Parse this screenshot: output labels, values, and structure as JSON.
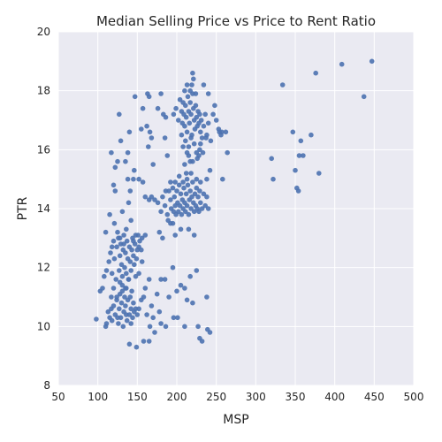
{
  "chart_data": {
    "type": "scatter",
    "title": "Median Selling Price vs Price to Rent Ratio",
    "xlabel": "MSP",
    "ylabel": "PTR",
    "xlim": [
      50,
      500
    ],
    "ylim": [
      8,
      20
    ],
    "xticks": [
      "50",
      "100",
      "150",
      "200",
      "250",
      "300",
      "350",
      "400",
      "450",
      "500"
    ],
    "yticks": [
      "8",
      "10",
      "12",
      "14",
      "16",
      "18",
      "20"
    ],
    "grid": true,
    "colors": {
      "background": "#eaeaf2",
      "grid": "#ffffff",
      "point": "#4c72b0"
    },
    "points": [
      [
        98,
        10.25
      ],
      [
        110,
        10.0
      ],
      [
        111,
        10.1
      ],
      [
        113,
        10.5
      ],
      [
        115,
        10.3
      ],
      [
        117,
        10.6
      ],
      [
        118,
        10.2
      ],
      [
        120,
        10.7
      ],
      [
        122,
        10.4
      ],
      [
        124,
        10.9
      ],
      [
        126,
        10.1
      ],
      [
        127,
        10.6
      ],
      [
        128,
        11.1
      ],
      [
        129,
        10.3
      ],
      [
        130,
        10.8
      ],
      [
        131,
        11.4
      ],
      [
        132,
        10.0
      ],
      [
        133,
        10.5
      ],
      [
        134,
        11.0
      ],
      [
        135,
        10.7
      ],
      [
        136,
        11.3
      ],
      [
        137,
        10.2
      ],
      [
        138,
        10.9
      ],
      [
        139,
        11.6
      ],
      [
        140,
        10.4
      ],
      [
        141,
        11.0
      ],
      [
        142,
        10.6
      ],
      [
        143,
        11.2
      ],
      [
        144,
        10.3
      ],
      [
        145,
        10.8
      ],
      [
        146,
        10.5
      ],
      [
        148,
        10.6
      ],
      [
        150,
        10.4
      ],
      [
        152,
        10.6
      ],
      [
        149,
        9.3
      ],
      [
        140,
        9.4
      ],
      [
        158,
        9.5
      ],
      [
        165,
        9.5
      ],
      [
        166,
        10.0
      ],
      [
        172,
        9.8
      ],
      [
        180,
        10.1
      ],
      [
        186,
        10.0
      ],
      [
        196,
        10.3
      ],
      [
        201,
        10.3
      ],
      [
        210,
        10.0
      ],
      [
        227,
        10.0
      ],
      [
        229,
        9.6
      ],
      [
        232,
        9.5
      ],
      [
        239,
        9.9
      ],
      [
        242,
        9.8
      ],
      [
        238,
        11.0
      ],
      [
        225,
        11.9
      ],
      [
        217,
        11.7
      ],
      [
        205,
        11.4
      ],
      [
        210,
        11.3
      ],
      [
        213,
        10.9
      ],
      [
        220,
        10.8
      ],
      [
        195,
        12.0
      ],
      [
        180,
        11.6
      ],
      [
        185,
        11.6
      ],
      [
        175,
        11.1
      ],
      [
        168,
        10.7
      ],
      [
        162,
        10.4
      ],
      [
        170,
        10.3
      ],
      [
        178,
        10.5
      ],
      [
        160,
        11.3
      ],
      [
        155,
        10.9
      ],
      [
        158,
        11.0
      ],
      [
        165,
        11.6
      ],
      [
        190,
        11.0
      ],
      [
        200,
        11.2
      ],
      [
        103,
        11.2
      ],
      [
        106,
        11.3
      ],
      [
        108,
        11.7
      ],
      [
        111,
        11.9
      ],
      [
        114,
        12.2
      ],
      [
        116,
        12.5
      ],
      [
        118,
        11.8
      ],
      [
        120,
        12.9
      ],
      [
        121,
        12.3
      ],
      [
        123,
        11.6
      ],
      [
        124,
        12.7
      ],
      [
        126,
        13.0
      ],
      [
        127,
        11.9
      ],
      [
        128,
        12.4
      ],
      [
        129,
        12.8
      ],
      [
        130,
        12.1
      ],
      [
        131,
        11.7
      ],
      [
        132,
        12.6
      ],
      [
        133,
        13.1
      ],
      [
        134,
        12.0
      ],
      [
        135,
        12.5
      ],
      [
        136,
        11.8
      ],
      [
        137,
        12.9
      ],
      [
        138,
        12.3
      ],
      [
        139,
        11.6
      ],
      [
        140,
        12.7
      ],
      [
        141,
        12.2
      ],
      [
        142,
        11.9
      ],
      [
        143,
        12.6
      ],
      [
        144,
        13.0
      ],
      [
        145,
        12.4
      ],
      [
        146,
        12.1
      ],
      [
        147,
        12.8
      ],
      [
        148,
        11.7
      ],
      [
        149,
        12.3
      ],
      [
        150,
        12.6
      ],
      [
        151,
        13.1
      ],
      [
        153,
        12.9
      ],
      [
        155,
        12.6
      ],
      [
        156,
        12.2
      ],
      [
        152,
        11.8
      ],
      [
        135,
        11.3
      ],
      [
        131,
        11.2
      ],
      [
        128,
        11.5
      ],
      [
        124,
        11.0
      ],
      [
        120,
        11.3
      ],
      [
        117,
        11.0
      ],
      [
        125,
        10.3
      ],
      [
        136,
        10.4
      ],
      [
        142,
        10.1
      ],
      [
        110,
        13.2
      ],
      [
        115,
        13.8
      ],
      [
        118,
        12.7
      ],
      [
        121,
        13.5
      ],
      [
        125,
        13.2
      ],
      [
        128,
        13.0
      ],
      [
        131,
        13.9
      ],
      [
        133,
        12.8
      ],
      [
        136,
        13.3
      ],
      [
        139,
        14.2
      ],
      [
        142,
        13.6
      ],
      [
        145,
        12.9
      ],
      [
        148,
        13.1
      ],
      [
        152,
        12.7
      ],
      [
        156,
        13.0
      ],
      [
        160,
        13.1
      ],
      [
        141,
        14.6
      ],
      [
        145,
        15.0
      ],
      [
        138,
        15.0
      ],
      [
        146,
        15.3
      ],
      [
        152,
        15.0
      ],
      [
        157,
        14.9
      ],
      [
        165,
        14.3
      ],
      [
        160,
        14.4
      ],
      [
        178,
        13.2
      ],
      [
        182,
        13.0
      ],
      [
        192,
        13.5
      ],
      [
        198,
        13.1
      ],
      [
        205,
        13.3
      ],
      [
        215,
        13.3
      ],
      [
        222,
        13.1
      ],
      [
        120,
        14.8
      ],
      [
        122,
        14.6
      ],
      [
        122,
        15.4
      ],
      [
        125,
        15.6
      ],
      [
        135,
        15.6
      ],
      [
        138,
        15.9
      ],
      [
        140,
        16.6
      ],
      [
        129,
        16.3
      ],
      [
        117,
        15.9
      ],
      [
        127,
        17.2
      ],
      [
        147,
        17.8
      ],
      [
        157,
        17.4
      ],
      [
        165,
        17.8
      ],
      [
        163,
        17.9
      ],
      [
        155,
        16.7
      ],
      [
        164,
        16.1
      ],
      [
        168,
        16.4
      ],
      [
        166,
        16.6
      ],
      [
        170,
        15.5
      ],
      [
        176,
        17.4
      ],
      [
        180,
        17.9
      ],
      [
        183,
        17.2
      ],
      [
        186,
        17.1
      ],
      [
        185,
        16.4
      ],
      [
        188,
        15.8
      ],
      [
        162,
        16.8
      ],
      [
        168,
        14.4
      ],
      [
        172,
        14.3
      ],
      [
        176,
        14.2
      ],
      [
        180,
        13.9
      ],
      [
        182,
        14.4
      ],
      [
        185,
        14.1
      ],
      [
        188,
        13.8
      ],
      [
        190,
        14.6
      ],
      [
        192,
        14.3
      ],
      [
        193,
        14.0
      ],
      [
        195,
        14.7
      ],
      [
        196,
        13.9
      ],
      [
        197,
        14.4
      ],
      [
        198,
        14.1
      ],
      [
        199,
        13.8
      ],
      [
        200,
        14.6
      ],
      [
        201,
        14.2
      ],
      [
        202,
        13.9
      ],
      [
        203,
        14.8
      ],
      [
        204,
        14.1
      ],
      [
        205,
        14.5
      ],
      [
        206,
        13.8
      ],
      [
        207,
        14.3
      ],
      [
        208,
        14.0
      ],
      [
        209,
        14.7
      ],
      [
        210,
        14.2
      ],
      [
        211,
        13.9
      ],
      [
        212,
        14.5
      ],
      [
        213,
        14.1
      ],
      [
        214,
        14.8
      ],
      [
        215,
        13.8
      ],
      [
        216,
        14.3
      ],
      [
        217,
        14.6
      ],
      [
        218,
        14.0
      ],
      [
        219,
        14.4
      ],
      [
        220,
        14.9
      ],
      [
        221,
        14.2
      ],
      [
        222,
        13.9
      ],
      [
        223,
        14.5
      ],
      [
        224,
        14.1
      ],
      [
        225,
        14.7
      ],
      [
        226,
        14.0
      ],
      [
        227,
        14.4
      ],
      [
        228,
        13.9
      ],
      [
        229,
        14.6
      ],
      [
        230,
        14.2
      ],
      [
        232,
        14.0
      ],
      [
        234,
        14.5
      ],
      [
        236,
        14.1
      ],
      [
        238,
        14.4
      ],
      [
        240,
        14.0
      ],
      [
        198,
        14.9
      ],
      [
        203,
        15.1
      ],
      [
        208,
        14.9
      ],
      [
        213,
        15.0
      ],
      [
        218,
        15.2
      ],
      [
        225,
        15.0
      ],
      [
        230,
        14.9
      ],
      [
        238,
        15.0
      ],
      [
        242,
        15.3
      ],
      [
        210,
        15.5
      ],
      [
        215,
        15.8
      ],
      [
        220,
        15.6
      ],
      [
        212,
        15.2
      ],
      [
        186,
        14.6
      ],
      [
        192,
        14.9
      ],
      [
        195,
        13.5
      ],
      [
        189,
        13.6
      ],
      [
        196,
        17.2
      ],
      [
        199,
        17.4
      ],
      [
        202,
        17.0
      ],
      [
        204,
        17.7
      ],
      [
        206,
        17.3
      ],
      [
        207,
        16.9
      ],
      [
        208,
        17.6
      ],
      [
        209,
        17.2
      ],
      [
        210,
        16.8
      ],
      [
        211,
        17.5
      ],
      [
        212,
        17.1
      ],
      [
        213,
        16.6
      ],
      [
        214,
        17.8
      ],
      [
        215,
        17.3
      ],
      [
        216,
        16.9
      ],
      [
        217,
        17.6
      ],
      [
        218,
        17.2
      ],
      [
        219,
        16.5
      ],
      [
        220,
        17.9
      ],
      [
        221,
        17.4
      ],
      [
        222,
        17.0
      ],
      [
        223,
        16.7
      ],
      [
        224,
        17.5
      ],
      [
        225,
        17.1
      ],
      [
        226,
        16.8
      ],
      [
        227,
        17.3
      ],
      [
        228,
        16.9
      ],
      [
        229,
        17.2
      ],
      [
        230,
        16.6
      ],
      [
        231,
        17.0
      ],
      [
        232,
        16.4
      ],
      [
        234,
        16.8
      ],
      [
        236,
        17.2
      ],
      [
        238,
        16.5
      ],
      [
        240,
        16.9
      ],
      [
        243,
        16.3
      ],
      [
        211,
        16.3
      ],
      [
        215,
        16.1
      ],
      [
        218,
        16.4
      ],
      [
        222,
        16.2
      ],
      [
        225,
        15.9
      ],
      [
        229,
        16.0
      ],
      [
        233,
        15.9
      ],
      [
        228,
        15.8
      ],
      [
        217,
        15.6
      ],
      [
        213,
        15.9
      ],
      [
        208,
        16.1
      ],
      [
        206,
        16.5
      ],
      [
        210,
        18.0
      ],
      [
        213,
        18.2
      ],
      [
        217,
        18.0
      ],
      [
        219,
        18.2
      ],
      [
        221,
        18.4
      ],
      [
        220,
        18.6
      ],
      [
        224,
        17.9
      ],
      [
        234,
        18.2
      ],
      [
        240,
        17.9
      ],
      [
        246,
        17.2
      ],
      [
        248,
        17.5
      ],
      [
        250,
        17.0
      ],
      [
        253,
        16.7
      ],
      [
        254,
        16.6
      ],
      [
        256,
        16.5
      ],
      [
        257,
        16.6
      ],
      [
        262,
        16.6
      ],
      [
        264,
        15.9
      ],
      [
        258,
        15.0
      ],
      [
        237,
        16.4
      ],
      [
        230,
        16.2
      ],
      [
        226,
        15.7
      ],
      [
        320,
        15.7
      ],
      [
        322,
        15.0
      ],
      [
        334,
        18.2
      ],
      [
        347,
        16.6
      ],
      [
        350,
        15.3
      ],
      [
        352,
        14.7
      ],
      [
        354,
        14.6
      ],
      [
        355,
        15.8
      ],
      [
        357,
        16.3
      ],
      [
        360,
        15.8
      ],
      [
        370,
        16.5
      ],
      [
        376,
        18.6
      ],
      [
        380,
        15.2
      ],
      [
        409,
        18.9
      ],
      [
        437,
        17.8
      ],
      [
        447,
        19.0
      ]
    ]
  }
}
